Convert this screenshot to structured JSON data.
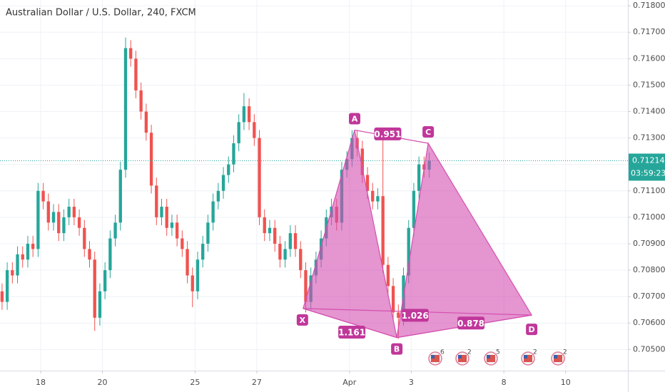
{
  "chart_data": {
    "type": "candlestick",
    "title": "Australian Dollar / U.S. Dollar, 240, FXCM",
    "up_color": "#26a69a",
    "down_color": "#ef5350",
    "open": [
      0.7072,
      0.7068,
      0.708,
      0.7078,
      0.7086,
      0.7084,
      0.709,
      0.7088,
      0.711,
      0.7106,
      0.7098,
      0.7102,
      0.7094,
      0.71,
      0.7104,
      0.71,
      0.7096,
      0.7088,
      0.7084,
      0.7062,
      0.7072,
      0.708,
      0.7092,
      0.7098,
      0.7118,
      0.7164,
      0.716,
      0.7148,
      0.714,
      0.7132,
      0.7112,
      0.71,
      0.7104,
      0.7096,
      0.7098,
      0.7092,
      0.7088,
      0.7078,
      0.7072,
      0.7084,
      0.709,
      0.7098,
      0.7106,
      0.711,
      0.7116,
      0.712,
      0.7128,
      0.7136,
      0.7142,
      0.7136,
      0.713,
      0.71,
      0.7094,
      0.7096,
      0.709,
      0.7084,
      0.7088,
      0.7094,
      0.7088,
      0.708,
      0.7068,
      0.7078,
      0.7084,
      0.7092,
      0.71,
      0.7104,
      0.7098,
      0.7118,
      0.7122,
      0.713,
      0.7126,
      0.7116,
      0.711,
      0.7106,
      0.7108,
      0.7082,
      0.7074,
      0.7064,
      0.7062,
      0.7078,
      0.7096,
      0.711,
      0.712,
      0.7118
    ],
    "high": [
      0.7075,
      0.7083,
      0.7083,
      0.7089,
      0.7089,
      0.7093,
      0.7093,
      0.7113,
      0.7113,
      0.7109,
      0.7105,
      0.7105,
      0.7103,
      0.7107,
      0.7107,
      0.7103,
      0.7099,
      0.7091,
      0.7087,
      0.7075,
      0.7083,
      0.7095,
      0.7101,
      0.7121,
      0.7168,
      0.7167,
      0.7163,
      0.7151,
      0.7143,
      0.7135,
      0.7115,
      0.7107,
      0.7107,
      0.7101,
      0.7101,
      0.7095,
      0.7091,
      0.7081,
      0.7087,
      0.7093,
      0.7101,
      0.7109,
      0.7113,
      0.7119,
      0.7123,
      0.7131,
      0.7139,
      0.7147,
      0.7145,
      0.7139,
      0.7133,
      0.7103,
      0.7099,
      0.7099,
      0.7093,
      0.7091,
      0.7097,
      0.7097,
      0.7091,
      0.7083,
      0.7081,
      0.7087,
      0.7095,
      0.7103,
      0.7107,
      0.7107,
      0.7121,
      0.7125,
      0.7133,
      0.7133,
      0.7129,
      0.7119,
      0.7113,
      0.7111,
      0.713,
      0.7085,
      0.7077,
      0.7067,
      0.7081,
      0.7099,
      0.7113,
      0.7123,
      0.7123,
      0.71244
    ],
    "low": [
      0.7065,
      0.7065,
      0.7075,
      0.7075,
      0.7081,
      0.7081,
      0.7085,
      0.7085,
      0.7103,
      0.7095,
      0.7095,
      0.7091,
      0.7091,
      0.7097,
      0.7097,
      0.7093,
      0.7085,
      0.7081,
      0.7057,
      0.7059,
      0.7069,
      0.7077,
      0.7089,
      0.7095,
      0.7115,
      0.7157,
      0.7145,
      0.7137,
      0.7129,
      0.7109,
      0.7097,
      0.7097,
      0.7093,
      0.7093,
      0.7089,
      0.7085,
      0.7075,
      0.7066,
      0.7069,
      0.7081,
      0.7087,
      0.7095,
      0.7103,
      0.7107,
      0.7113,
      0.7117,
      0.7125,
      0.7133,
      0.7133,
      0.7127,
      0.7097,
      0.7091,
      0.7091,
      0.7087,
      0.7081,
      0.7081,
      0.7085,
      0.7085,
      0.7077,
      0.7064,
      0.7065,
      0.7075,
      0.7081,
      0.7089,
      0.7097,
      0.7095,
      0.7095,
      0.7115,
      0.7119,
      0.7123,
      0.7113,
      0.7107,
      0.7103,
      0.7103,
      0.7079,
      0.7071,
      0.7061,
      0.7054,
      0.7059,
      0.7075,
      0.7093,
      0.7107,
      0.7115,
      0.7115
    ],
    "close": [
      0.7068,
      0.708,
      0.7078,
      0.7086,
      0.7084,
      0.709,
      0.7088,
      0.711,
      0.7106,
      0.7098,
      0.7102,
      0.7094,
      0.71,
      0.7104,
      0.71,
      0.7096,
      0.7088,
      0.7084,
      0.7062,
      0.7072,
      0.708,
      0.7092,
      0.7098,
      0.7118,
      0.7164,
      0.716,
      0.7148,
      0.714,
      0.7132,
      0.7112,
      0.71,
      0.7104,
      0.7096,
      0.7098,
      0.7092,
      0.7088,
      0.7078,
      0.7072,
      0.7084,
      0.709,
      0.7098,
      0.7106,
      0.711,
      0.7116,
      0.712,
      0.7128,
      0.7136,
      0.7142,
      0.7136,
      0.713,
      0.71,
      0.7094,
      0.7096,
      0.709,
      0.7084,
      0.7088,
      0.7094,
      0.7088,
      0.708,
      0.7068,
      0.7078,
      0.7084,
      0.7092,
      0.71,
      0.7104,
      0.7098,
      0.7118,
      0.7122,
      0.713,
      0.7126,
      0.7116,
      0.711,
      0.7106,
      0.7108,
      0.7082,
      0.7074,
      0.7064,
      0.7062,
      0.7078,
      0.7096,
      0.711,
      0.712,
      0.7118,
      0.71214
    ],
    "xlim": [
      -0.4,
      121.6
    ],
    "xticks": [
      {
        "value": 7.5,
        "label": "18"
      },
      {
        "value": 19.5,
        "label": "20"
      },
      {
        "value": 37.5,
        "label": "25"
      },
      {
        "value": 49.5,
        "label": "27"
      },
      {
        "value": 67.5,
        "label": "Apr"
      },
      {
        "value": 79.5,
        "label": "3"
      },
      {
        "value": 97.5,
        "label": "8"
      },
      {
        "value": 109.5,
        "label": "10"
      }
    ],
    "ylim": [
      0.7042,
      0.71822
    ],
    "yticks": [
      {
        "value": 0.705,
        "label": "0.70500"
      },
      {
        "value": 0.706,
        "label": "0.70600"
      },
      {
        "value": 0.707,
        "label": "0.70700"
      },
      {
        "value": 0.708,
        "label": "0.70800"
      },
      {
        "value": 0.709,
        "label": "0.70900"
      },
      {
        "value": 0.71,
        "label": "0.71000"
      },
      {
        "value": 0.711,
        "label": "0.71100"
      },
      {
        "value": 0.712,
        "label": "0.71200"
      },
      {
        "value": 0.713,
        "label": "0.71300"
      },
      {
        "value": 0.714,
        "label": "0.71400"
      },
      {
        "value": 0.715,
        "label": "0.71500"
      },
      {
        "value": 0.716,
        "label": "0.71600"
      },
      {
        "value": 0.717,
        "label": "0.71700"
      },
      {
        "value": 0.718,
        "label": "0.71800"
      }
    ],
    "grid": true,
    "last_price": 0.71214,
    "countdown": "03:59:23",
    "pattern": {
      "color": "#d44fb0",
      "points": [
        {
          "label": "X",
          "x": 58.5,
          "y": 0.70655
        },
        {
          "label": "A",
          "x": 68.5,
          "y": 0.7133
        },
        {
          "label": "B",
          "x": 76.7,
          "y": 0.70545
        },
        {
          "label": "C",
          "x": 82.8,
          "y": 0.7128
        },
        {
          "label": "D",
          "x": 102.9,
          "y": 0.7063
        }
      ],
      "ratios": [
        0.951,
        1.161,
        1.026,
        0.878
      ]
    },
    "events": [
      "6",
      "2",
      "5",
      "2",
      "2"
    ]
  }
}
